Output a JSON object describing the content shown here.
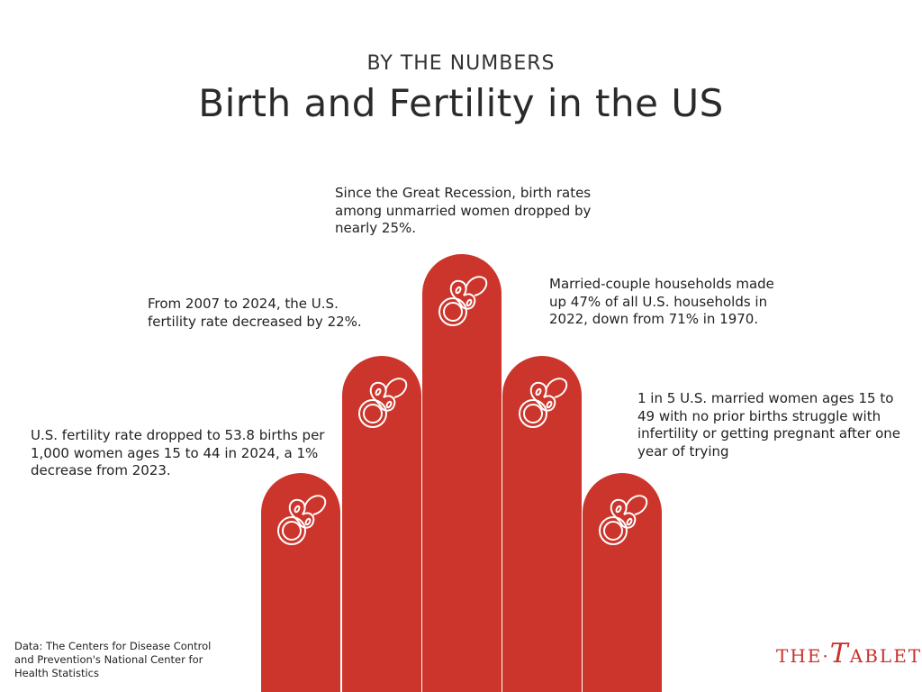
{
  "header": {
    "kicker": "BY THE NUMBERS",
    "title": "Birth and Fertility in the US"
  },
  "facts": [
    "U.S. fertility rate dropped to 53.8 births per 1,000 women ages 15 to 44 in 2024, a 1% decrease from 2023.",
    "From 2007 to 2024, the U.S. fertility rate decreased by 22%.",
    "Since the Great Recession, birth rates among unmarried women dropped by nearly 25%.",
    "Married-couple households made up 47% of all U.S. households in 2022, down from 71% in 1970.",
    "1 in 5 U.S. married women ages 15 to 49 with no prior births struggle with infertility or getting pregnant after one year of trying"
  ],
  "source": "Data: The Centers for Disease Control and Prevention's National Center for Health Statistics",
  "logo": "THE TABLET",
  "colors": {
    "bar": "#cc352b",
    "logo": "#c9302c"
  },
  "icons": [
    "pacifier-icon"
  ]
}
